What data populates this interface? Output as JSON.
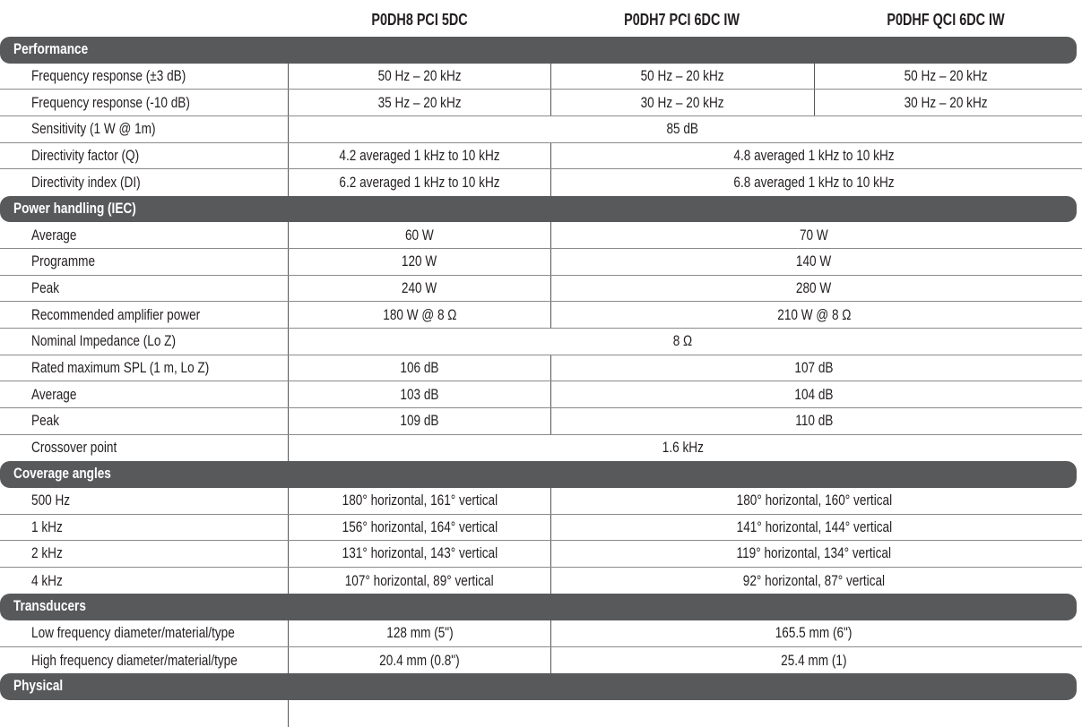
{
  "models": [
    "P0DH8 PCI 5DC",
    "P0DH7 PCI 6DC IW",
    "P0DHF QCI 6DC IW"
  ],
  "sections": [
    {
      "title": "Performance",
      "rows": [
        {
          "label": "Frequency response (±3 dB)",
          "values": [
            "50 Hz – 20 kHz",
            "50 Hz – 20 kHz",
            "50 Hz – 20 kHz"
          ]
        },
        {
          "label": "Frequency response (-10 dB)",
          "values": [
            "35 Hz – 20 kHz",
            "30 Hz – 20 kHz",
            "30 Hz – 20 kHz"
          ]
        },
        {
          "label": "Sensitivity (1 W @ 1m)",
          "values": [
            "85 dB"
          ]
        },
        {
          "label": "Directivity factor (Q)",
          "values": [
            "4.2 averaged 1 kHz to 10 kHz",
            "4.8 averaged 1 kHz to 10 kHz"
          ]
        },
        {
          "label": "Directivity index (DI)",
          "values": [
            "6.2 averaged 1 kHz to 10 kHz",
            "6.8 averaged 1 kHz to 10 kHz"
          ]
        }
      ]
    },
    {
      "title": "Power handling (IEC)",
      "rows": [
        {
          "label": "Average",
          "values": [
            "60 W",
            "70 W"
          ]
        },
        {
          "label": "Programme",
          "values": [
            "120 W",
            "140 W"
          ]
        },
        {
          "label": "Peak",
          "values": [
            "240 W",
            "280 W"
          ]
        },
        {
          "label": "Recommended amplifier power",
          "values": [
            "180 W @ 8 Ω",
            "210 W @ 8 Ω"
          ]
        },
        {
          "label": "Nominal Impedance (Lo Z)",
          "values": [
            "8 Ω"
          ]
        },
        {
          "label": "Rated maximum SPL (1 m, Lo Z)",
          "values": [
            "106 dB",
            "107 dB"
          ]
        },
        {
          "label": "Average",
          "values": [
            "103 dB",
            "104 dB"
          ]
        },
        {
          "label": "Peak",
          "values": [
            "109 dB",
            "110 dB"
          ]
        },
        {
          "label": "Crossover point",
          "values": [
            "1.6 kHz"
          ]
        }
      ]
    },
    {
      "title": "Coverage angles",
      "rows": [
        {
          "label": "500 Hz",
          "values": [
            "180° horizontal, 161° vertical",
            "180° horizontal, 160° vertical"
          ]
        },
        {
          "label": "1 kHz",
          "values": [
            "156° horizontal, 164° vertical",
            "141° horizontal, 144° vertical"
          ]
        },
        {
          "label": "2 kHz",
          "values": [
            "131° horizontal, 143° vertical",
            "119° horizontal, 134° vertical"
          ]
        },
        {
          "label": "4 kHz",
          "values": [
            "107° horizontal, 89° vertical",
            "92° horizontal, 87° vertical"
          ]
        }
      ]
    },
    {
      "title": "Transducers",
      "rows": [
        {
          "label": "Low frequency  diameter/material/type",
          "values": [
            "128 mm (5\")",
            "165.5 mm (6\")"
          ]
        },
        {
          "label": "High frequency  diameter/material/type",
          "values": [
            "20.4 mm (0.8\")",
            "25.4 mm (1)"
          ]
        }
      ]
    },
    {
      "title": "Physical",
      "rows": []
    }
  ]
}
